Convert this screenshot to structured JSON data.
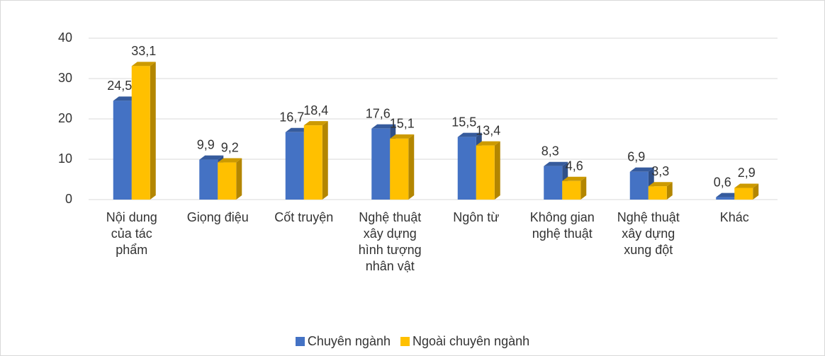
{
  "chart_data": {
    "type": "bar",
    "categories": [
      "Nội dung của tác phẩm",
      "Giọng điệu",
      "Cốt truyện",
      "Nghệ thuật xây dựng hình tượng nhân vật",
      "Ngôn từ",
      "Không gian nghệ thuật",
      "Nghệ thuật xây dựng xung đột",
      "Khác"
    ],
    "series": [
      {
        "name": "Chuyên ngành",
        "color": "#4472c4",
        "values": [
          24.5,
          9.9,
          16.7,
          17.6,
          15.5,
          8.3,
          6.9,
          0.6
        ],
        "value_labels": [
          "24,5",
          "9,9",
          "16,7",
          "17,6",
          "15,5",
          "8,3",
          "6,9",
          "0,6"
        ]
      },
      {
        "name": "Ngoài chuyên ngành",
        "color": "#ffc000",
        "values": [
          33.1,
          9.2,
          18.4,
          15.1,
          13.4,
          4.6,
          3.3,
          2.9
        ],
        "value_labels": [
          "33,1",
          "9,2",
          "18,4",
          "15,1",
          "13,4",
          "4,6",
          "3,3",
          "2,9"
        ]
      }
    ],
    "ylim": [
      0,
      40
    ],
    "yticks": [
      0,
      10,
      20,
      30,
      40
    ],
    "grid": true,
    "legend": "bottom"
  }
}
